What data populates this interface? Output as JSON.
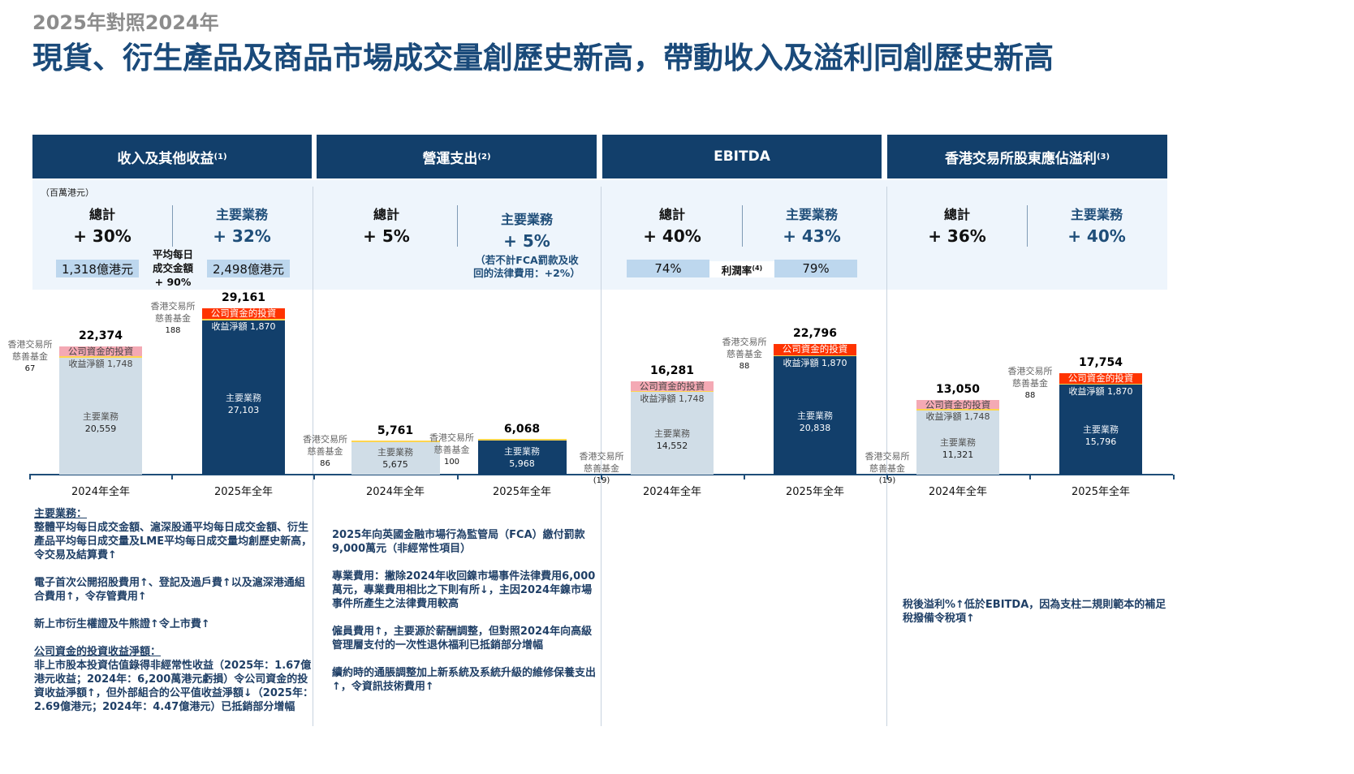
{
  "subtitle": "2025年對照2024年",
  "title": "現貨、衍生產品及商品市場成交量創歷史新高，帶動收入及溢利同創歷史新高",
  "unit": "（百萬港元）",
  "colors": {
    "header": "#123f6b",
    "band": "#eef5fc",
    "bar_2024": "#d0dde7",
    "bar_2025": "#123f6b",
    "invest_2024": "#f4a9b4",
    "invest_2025": "#ff3300",
    "charity": "#ffd54f",
    "metric_box": "#bdd7ee",
    "text": "#1f3f66"
  },
  "panels": [
    {
      "title": "收入及其他收益",
      "sup": "(1)",
      "total_label": "總計",
      "total_change": "+ 30%",
      "main_label": "主要業務",
      "main_change": "+ 32%",
      "metric": {
        "left": "1,318億港元",
        "mid": [
          "平均每日",
          "成交金額",
          "+ 90%"
        ],
        "right": "2,498億港元"
      }
    },
    {
      "title": "營運支出",
      "sup": "(2)",
      "total_label": "總計",
      "total_change": "+ 5%",
      "main_label": "主要業務",
      "main_change": "+ 5%",
      "note": [
        "（若不計FCA罰款及收",
        "回的法律費用：+2%）"
      ]
    },
    {
      "title": "EBITDA",
      "sup": "",
      "total_label": "總計",
      "total_change": "+ 40%",
      "main_label": "主要業務",
      "main_change": "+ 43%",
      "metric": {
        "left": "74%",
        "mid": [
          "利潤率"
        ],
        "mid_sup": "(4)",
        "right": "79%"
      }
    },
    {
      "title": "香港交易所股東應佔溢利",
      "sup": "(3)",
      "total_label": "總計",
      "total_change": "+ 36%",
      "main_label": "主要業務",
      "main_change": "+ 40%"
    }
  ],
  "segment_labels": {
    "main": "主要業務",
    "invest_1": "公司資金的投資",
    "invest_2": "收益淨額",
    "charity_1": "香港交易所",
    "charity_2": "慈善基金"
  },
  "chart_data": [
    {
      "type": "bar",
      "stacked": true,
      "categories": [
        "2024年全年",
        "2025年全年"
      ],
      "totals": [
        "22,374",
        "29,161"
      ],
      "series": [
        {
          "name": "主要業務",
          "values": [
            20559,
            27103
          ],
          "labels": [
            "20,559",
            "27,103"
          ]
        },
        {
          "name": "公司資金的投資收益淨額",
          "values": [
            1748,
            1870
          ],
          "labels": [
            "1,748",
            "1,870"
          ]
        },
        {
          "name": "香港交易所慈善基金",
          "values": [
            67,
            188
          ],
          "labels": [
            "67",
            "188"
          ]
        }
      ]
    },
    {
      "type": "bar",
      "stacked": true,
      "categories": [
        "2024年全年",
        "2025年全年"
      ],
      "totals": [
        "5,761",
        "6,068"
      ],
      "series": [
        {
          "name": "主要業務",
          "values": [
            5675,
            5968
          ],
          "labels": [
            "5,675",
            "5,968"
          ]
        },
        {
          "name": "香港交易所慈善基金",
          "values": [
            86,
            100
          ],
          "labels": [
            "86",
            "100"
          ]
        }
      ]
    },
    {
      "type": "bar",
      "stacked": true,
      "categories": [
        "2024年全年",
        "2025年全年"
      ],
      "totals": [
        "16,281",
        "22,796"
      ],
      "series": [
        {
          "name": "主要業務",
          "values": [
            14552,
            20838
          ],
          "labels": [
            "14,552",
            "20,838"
          ]
        },
        {
          "name": "公司資金的投資收益淨額",
          "values": [
            1748,
            1870
          ],
          "labels": [
            "1,748",
            "1,870"
          ]
        },
        {
          "name": "香港交易所慈善基金",
          "values": [
            -19,
            88
          ],
          "labels": [
            "(19)",
            "88"
          ]
        }
      ]
    },
    {
      "type": "bar",
      "stacked": true,
      "categories": [
        "2024年全年",
        "2025年全年"
      ],
      "totals": [
        "13,050",
        "17,754"
      ],
      "series": [
        {
          "name": "主要業務",
          "values": [
            11321,
            15796
          ],
          "labels": [
            "11,321",
            "15,796"
          ]
        },
        {
          "name": "公司資金的投資收益淨額",
          "values": [
            1748,
            1870
          ],
          "labels": [
            "1,748",
            "1,870"
          ]
        },
        {
          "name": "香港交易所慈善基金",
          "values": [
            -19,
            88
          ],
          "labels": [
            "(19)",
            "88"
          ]
        }
      ]
    }
  ],
  "notes": {
    "revenue": [
      {
        "heading": "主要業務：",
        "text": "整體平均每日成交金額、滬深股通平均每日成交金額、衍生產品平均每日成交量及LME平均每日成交量均創歷史新高，令交易及結算費↑"
      },
      {
        "text": "電子首次公開招股費用↑、登記及過戶費↑以及滬深港通組合費用↑，令存管費用↑"
      },
      {
        "text": "新上市衍生權證及牛熊證↑令上市費↑"
      },
      {
        "heading": "公司資金的投資收益淨額：",
        "text": "非上市股本投資估值錄得非經常性收益（2025年：1.67億港元收益；2024年：6,200萬港元虧損）令公司資金的投資收益淨額↑，但外部組合的公平值收益淨額↓（2025年：2.69億港元；2024年：4.47億港元）已抵銷部分增幅"
      }
    ],
    "opex": [
      {
        "text": "2025年向英國金融市場行為監管局（FCA）繳付罰款9,000萬元（非經常性項目）"
      },
      {
        "text": "專業費用：撇除2024年收回鎳市場事件法律費用6,000萬元，專業費用相比之下則有所↓，主因2024年鎳市場事件所產生之法律費用較高"
      },
      {
        "text": "僱員費用↑，主要源於薪酬調整，但對照2024年向高級管理層支付的一次性退休福利已抵銷部分增幅"
      },
      {
        "text": "續約時的通脹調整加上新系統及系統升級的維修保養支出↑，令資訊技術費用↑"
      }
    ],
    "profit": [
      {
        "text": "稅後溢利%↑低於EBITDA，因為支柱二規則範本的補足稅撥備令稅項↑"
      }
    ]
  }
}
